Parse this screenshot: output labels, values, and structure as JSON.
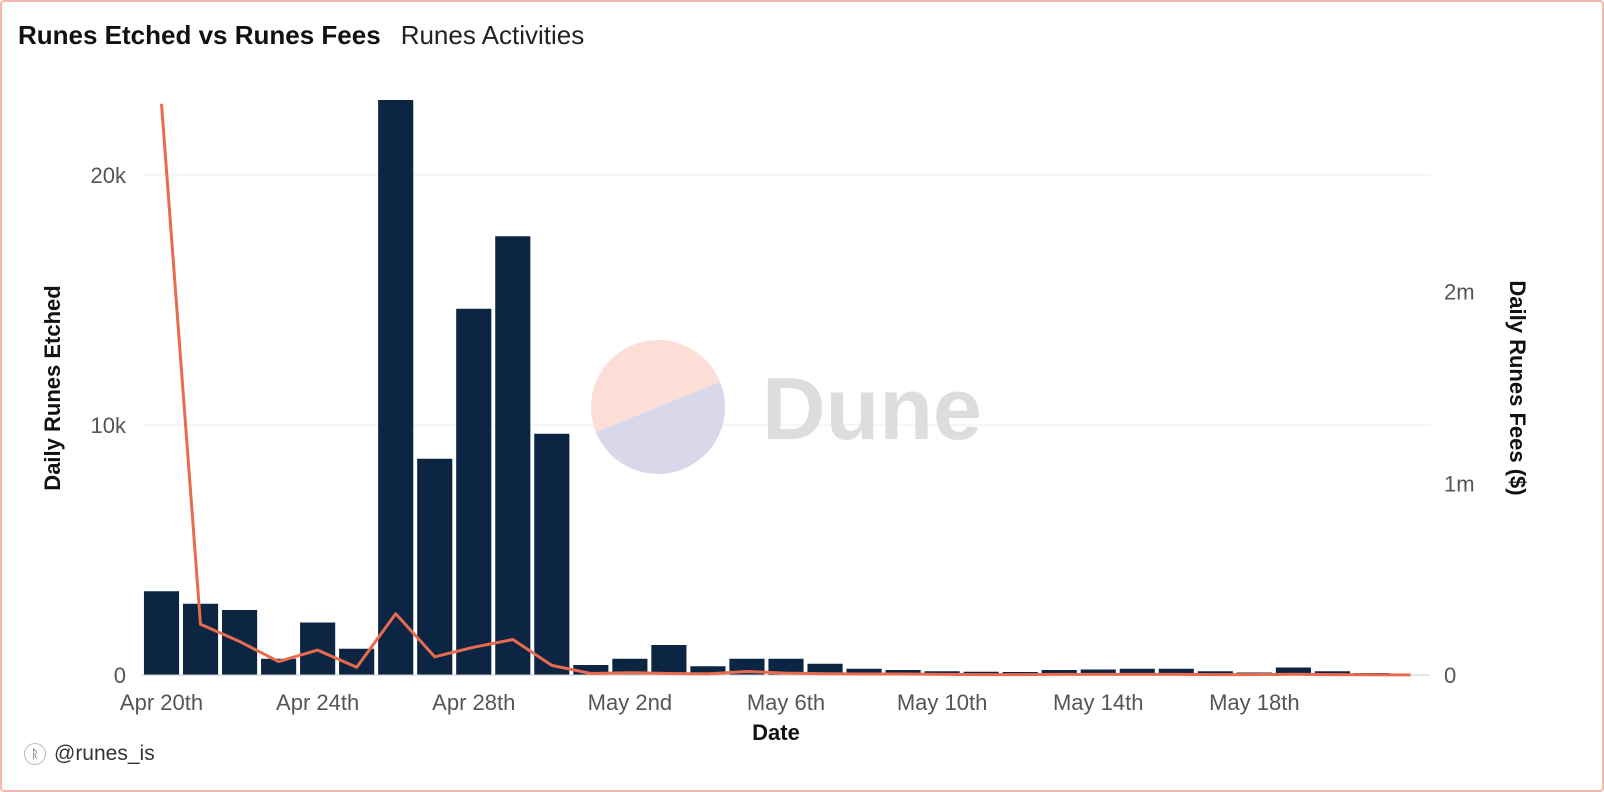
{
  "header": {
    "title": "Runes Etched vs Runes Fees",
    "subtitle": "Runes Activities"
  },
  "footer": {
    "handle": "@runes_is",
    "icon": "runes-logo-icon"
  },
  "watermark": {
    "text": "Dune",
    "colors": {
      "top": "#fcded7",
      "bottom": "#d9d8ea",
      "text": "#dddddd"
    }
  },
  "chart_data": {
    "type": "bar",
    "xlabel": "Date",
    "ylabel": "Daily Runes Etched",
    "y2label": "Daily Runes Fees ($)",
    "ylim": [
      0,
      23000
    ],
    "y2lim": [
      0,
      3000000
    ],
    "y_ticks": [
      {
        "value": 0,
        "label": "0"
      },
      {
        "value": 10000,
        "label": "10k"
      },
      {
        "value": 20000,
        "label": "20k"
      }
    ],
    "y2_ticks": [
      {
        "value": 0,
        "label": "0"
      },
      {
        "value": 1000000,
        "label": "1m"
      },
      {
        "value": 2000000,
        "label": "2m"
      }
    ],
    "x_ticks": [
      {
        "index": 0,
        "label": "Apr 20th"
      },
      {
        "index": 4,
        "label": "Apr 24th"
      },
      {
        "index": 8,
        "label": "Apr 28th"
      },
      {
        "index": 12,
        "label": "May 2nd"
      },
      {
        "index": 16,
        "label": "May 6th"
      },
      {
        "index": 20,
        "label": "May 10th"
      },
      {
        "index": 24,
        "label": "May 14th"
      },
      {
        "index": 28,
        "label": "May 18th"
      }
    ],
    "dates": [
      "2024-04-20",
      "2024-04-21",
      "2024-04-22",
      "2024-04-23",
      "2024-04-24",
      "2024-04-25",
      "2024-04-26",
      "2024-04-27",
      "2024-04-28",
      "2024-04-29",
      "2024-04-30",
      "2024-05-01",
      "2024-05-02",
      "2024-05-03",
      "2024-05-04",
      "2024-05-05",
      "2024-05-06",
      "2024-05-07",
      "2024-05-08",
      "2024-05-09",
      "2024-05-10",
      "2024-05-11",
      "2024-05-12",
      "2024-05-13",
      "2024-05-14",
      "2024-05-15",
      "2024-05-16",
      "2024-05-17",
      "2024-05-18",
      "2024-05-19",
      "2024-05-20",
      "2024-05-21",
      "2024-05-22"
    ],
    "series": [
      {
        "name": "Daily Runes Etched",
        "type": "bar",
        "axis": "left",
        "color": "#0c2543",
        "values": [
          3350,
          2850,
          2600,
          650,
          2100,
          1050,
          23000,
          8650,
          14650,
          17550,
          9650,
          400,
          650,
          1200,
          350,
          650,
          650,
          450,
          250,
          200,
          150,
          130,
          120,
          200,
          220,
          250,
          250,
          150,
          100,
          300,
          150,
          80,
          0
        ]
      },
      {
        "name": "Daily Runes Fees ($)",
        "type": "line",
        "axis": "right",
        "color": "#e96b4f",
        "values": [
          2980000,
          265000,
          175000,
          70000,
          130000,
          40000,
          320000,
          95000,
          145000,
          185000,
          50000,
          8000,
          12000,
          8000,
          6000,
          18000,
          10000,
          7000,
          5000,
          5000,
          3000,
          2000,
          2000,
          3000,
          3000,
          3000,
          3000,
          2000,
          2000,
          4000,
          2000,
          1000,
          500
        ]
      }
    ],
    "grid": true
  }
}
